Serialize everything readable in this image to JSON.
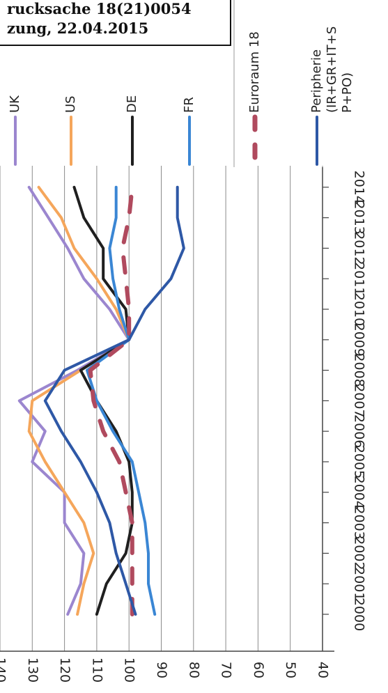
{
  "header": {
    "line1": "rucksache 18(21)0054",
    "line2": "zung, 22.04.2015"
  },
  "chart_data": {
    "type": "line",
    "x": [
      "2000",
      "2001",
      "2002",
      "2003",
      "2004",
      "2005",
      "2006",
      "2007",
      "2008",
      "2009",
      "2010",
      "2011",
      "2012",
      "2013",
      "2014"
    ],
    "ylim": [
      40,
      140
    ],
    "yticks": [
      140,
      130,
      120,
      110,
      100,
      90,
      80,
      70,
      60,
      50,
      40
    ],
    "grid": true,
    "legend_position": "right",
    "series": [
      {
        "name": "UK",
        "color": "#9b86cf",
        "dash": false,
        "values": [
          119,
          115,
          114,
          120,
          120,
          130,
          126,
          134,
          116,
          100,
          106,
          114,
          119,
          125,
          131
        ]
      },
      {
        "name": "US",
        "color": "#f5a65b",
        "dash": false,
        "values": [
          116,
          114,
          111,
          114,
          120,
          126,
          131,
          130,
          115,
          100,
          104,
          110,
          117,
          121,
          128
        ]
      },
      {
        "name": "DE",
        "color": "#1f1f1f",
        "dash": false,
        "values": [
          110,
          107,
          101,
          99,
          99,
          100,
          104,
          110,
          115,
          100,
          101,
          108,
          108,
          114,
          117
        ]
      },
      {
        "name": "FR",
        "color": "#3a86d4",
        "dash": false,
        "values": [
          92,
          94,
          94,
          95,
          97,
          99,
          105,
          110,
          113,
          100,
          103,
          105,
          106,
          104,
          104
        ]
      },
      {
        "name": "Euroraum 18",
        "color": "#b04a5e",
        "dash": true,
        "values": [
          99,
          99,
          99,
          99,
          101,
          103,
          108,
          111,
          112,
          100,
          100,
          101,
          102,
          100,
          99
        ]
      },
      {
        "name": "Peripherie\n(IR+GR+IT+S\nP+PO)",
        "color": "#2e58a6",
        "dash": false,
        "values": [
          98,
          101,
          104,
          106,
          110,
          115,
          121,
          126,
          120,
          100,
          95,
          87,
          83,
          85,
          85
        ]
      }
    ]
  }
}
